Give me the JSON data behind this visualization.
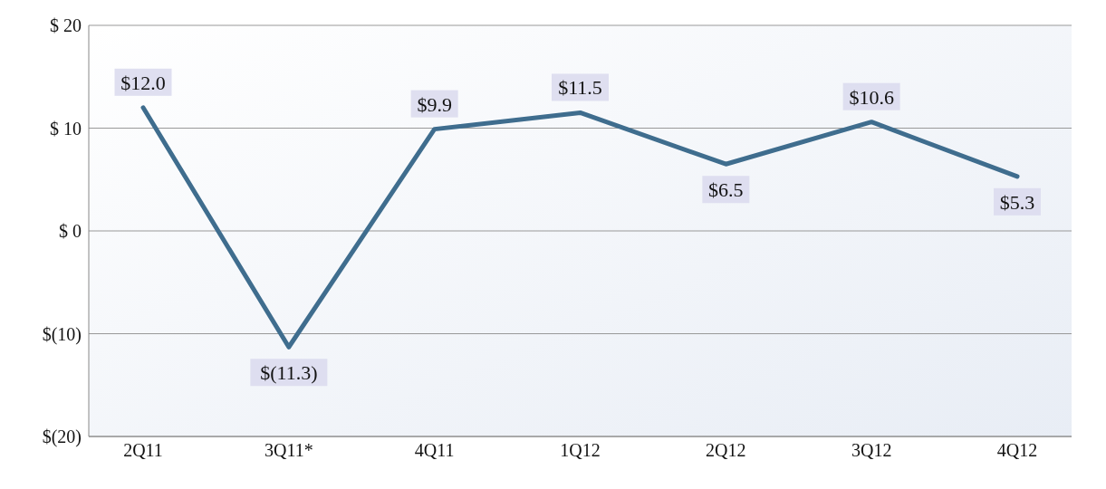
{
  "chart_data": {
    "type": "line",
    "categories": [
      "2Q11",
      "3Q11*",
      "4Q11",
      "1Q12",
      "2Q12",
      "3Q12",
      "4Q12"
    ],
    "series": [
      {
        "color": "#3f6d8e",
        "values": [
          12.0,
          -11.3,
          9.9,
          11.5,
          6.5,
          10.6,
          5.3
        ],
        "value_labels": [
          "$12.0",
          "$(11.3)",
          "$9.9",
          "$11.5",
          "$6.5",
          "$10.6",
          "$5.3"
        ]
      }
    ],
    "ylim": [
      -20,
      20
    ],
    "yticks": [
      {
        "value": -20,
        "label": "$(20)"
      },
      {
        "value": -10,
        "label": "$(10)"
      },
      {
        "value": 0,
        "label": "$  0"
      },
      {
        "value": 10,
        "label": "$ 10"
      },
      {
        "value": 20,
        "label": "$ 20"
      }
    ],
    "grid": "y",
    "marker": "none",
    "line_style": "solid"
  }
}
